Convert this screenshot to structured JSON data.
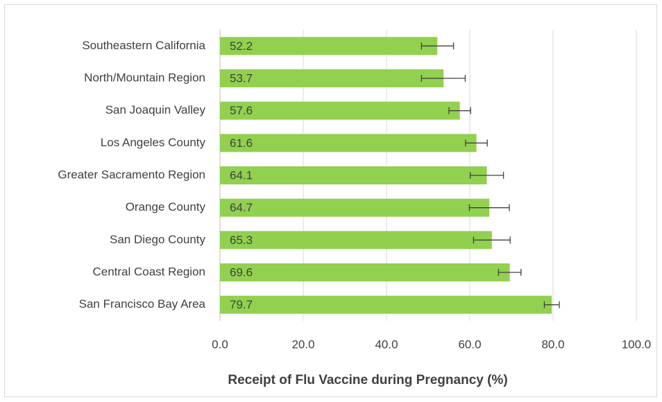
{
  "chart_data": {
    "type": "bar",
    "orientation": "horizontal",
    "x_label": "Receipt of Flu Vaccine during Pregnancy (%)",
    "categories": [
      "Southeastern California",
      "North/Mountain Region",
      "San Joaquin Valley",
      "Los Angeles County",
      "Greater Sacramento Region",
      "Orange County",
      "San Diego County",
      "Central Coast Region",
      "San Francisco Bay Area"
    ],
    "values": [
      52.2,
      53.7,
      57.6,
      61.6,
      64.1,
      64.7,
      65.3,
      69.6,
      79.7
    ],
    "ci_lower": [
      48.4,
      48.4,
      55.0,
      59.0,
      60.1,
      59.9,
      60.9,
      66.9,
      77.9
    ],
    "ci_upper": [
      56.1,
      58.9,
      60.2,
      64.2,
      68.1,
      69.5,
      69.7,
      72.3,
      81.5
    ],
    "color": "#92d050",
    "xlim": [
      0,
      100
    ],
    "xticks": [
      {
        "value": 0,
        "label": "0.0"
      },
      {
        "value": 20,
        "label": "20.0"
      },
      {
        "value": 40,
        "label": "40.0"
      },
      {
        "value": 60,
        "label": "60.0"
      },
      {
        "value": 80,
        "label": "80.0"
      },
      {
        "value": 100,
        "label": "100.0"
      }
    ],
    "grid": true
  }
}
